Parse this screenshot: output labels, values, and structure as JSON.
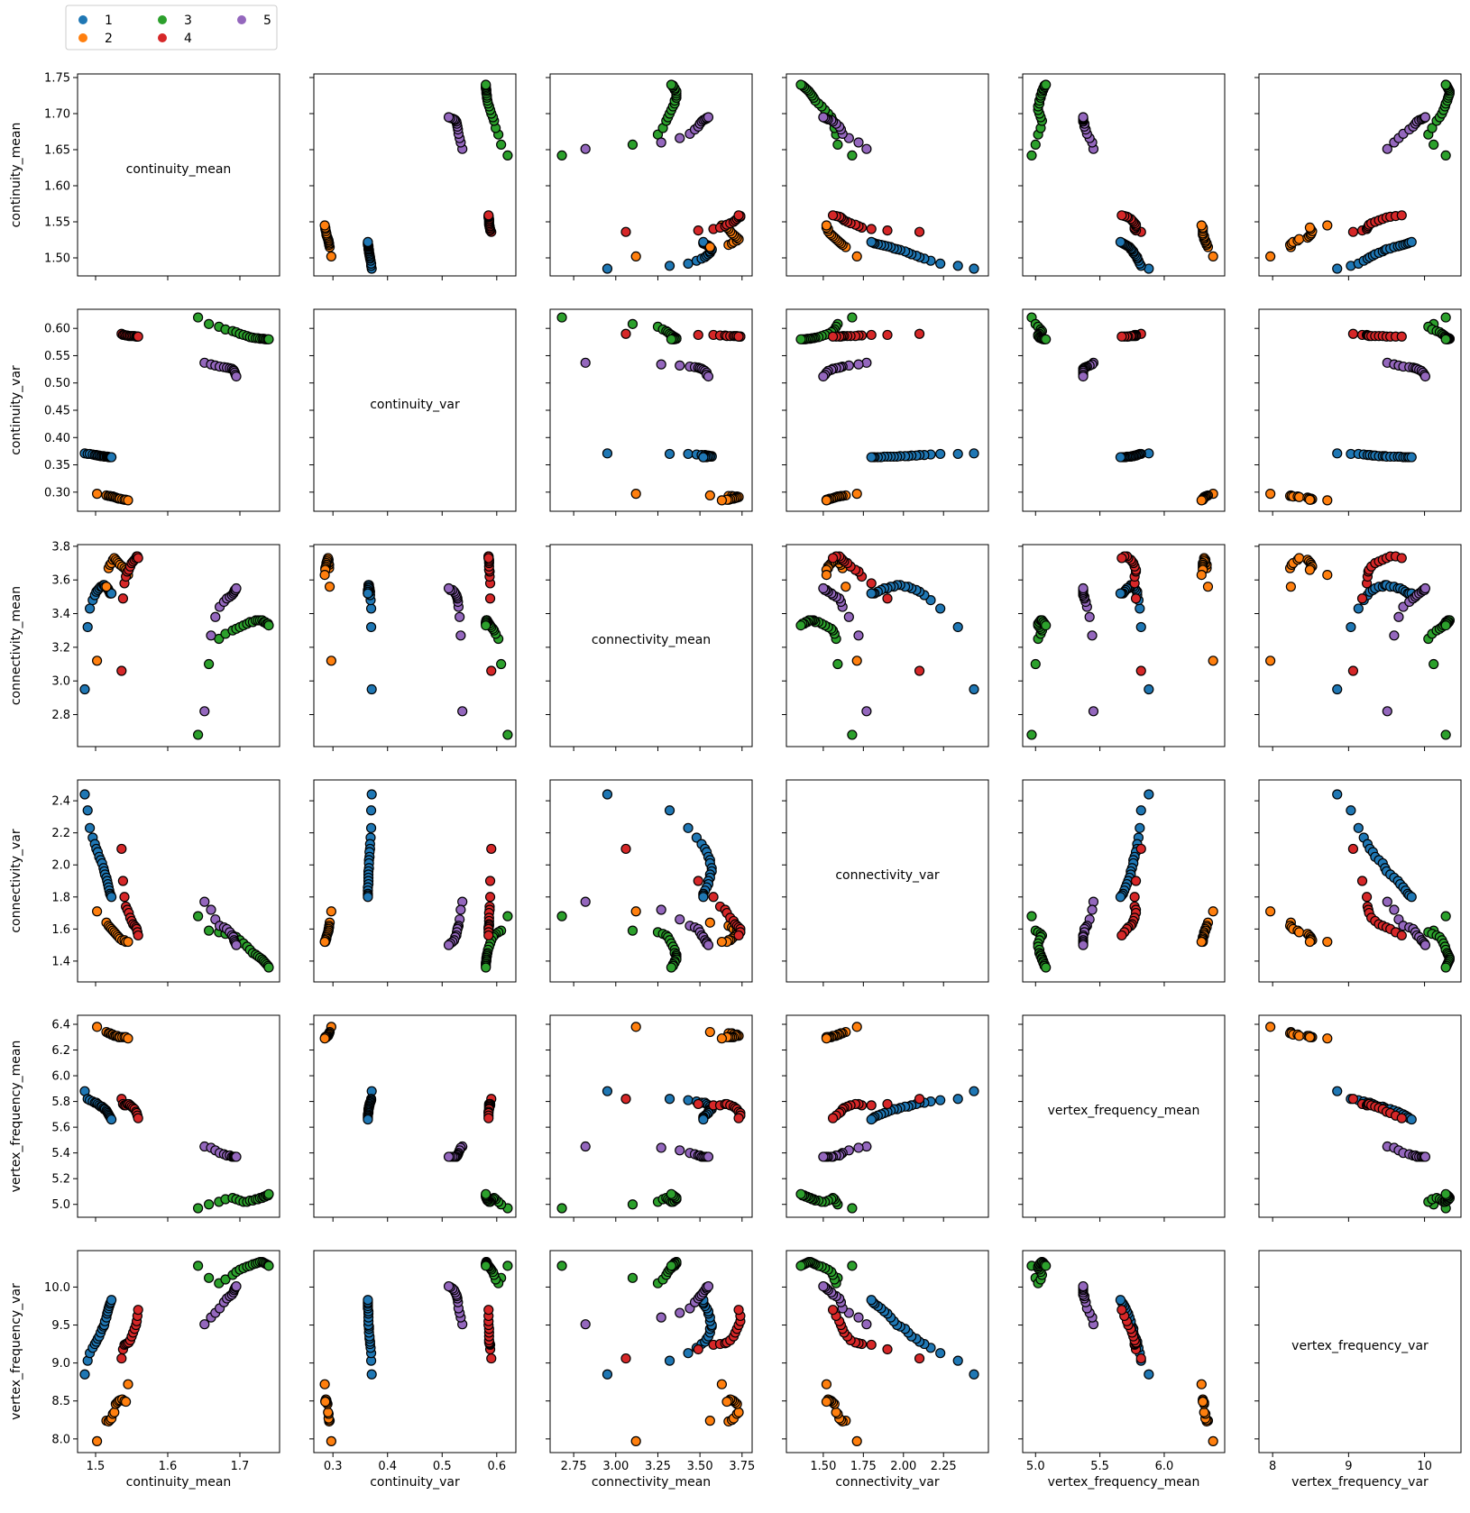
{
  "chart_data": {
    "type": "scatter",
    "layout": "pairplot-6x6",
    "variables": [
      "continuity_mean",
      "continuity_var",
      "connectivity_mean",
      "connectivity_var",
      "vertex_frequency_mean",
      "vertex_frequency_var"
    ],
    "diagonal_labels": [
      "continuity_mean",
      "continuity_var",
      "connectivity_mean",
      "connectivity_var",
      "vertex_frequency_mean",
      "vertex_frequency_var"
    ],
    "xlabels": [
      "continuity_mean",
      "continuity_var",
      "connectivity_mean",
      "connectivity_var",
      "vertex_frequency_mean",
      "vertex_frequency_var"
    ],
    "ylabels": [
      "continuity_mean",
      "continuity_var",
      "connectivity_mean",
      "connectivity_var",
      "vertex_frequency_mean",
      "vertex_frequency_var"
    ],
    "ranges": [
      [
        1.475,
        1.755
      ],
      [
        0.265,
        0.635
      ],
      [
        2.61,
        3.81
      ],
      [
        1.27,
        2.53
      ],
      [
        4.9,
        6.47
      ],
      [
        7.82,
        10.48
      ]
    ],
    "ticks": [
      [
        1.5,
        1.6,
        1.7
      ],
      [
        0.3,
        0.4,
        0.5,
        0.6
      ],
      [
        2.75,
        3.0,
        3.25,
        3.5,
        3.75
      ],
      [
        1.5,
        1.75,
        2.0,
        2.25
      ],
      [
        5.0,
        5.5,
        6.0
      ],
      [
        8,
        9,
        10
      ]
    ],
    "yticks": [
      [
        1.5,
        1.55,
        1.6,
        1.65,
        1.7,
        1.75
      ],
      [
        0.3,
        0.35,
        0.4,
        0.45,
        0.5,
        0.55,
        0.6
      ],
      [
        2.8,
        3.0,
        3.2,
        3.4,
        3.6,
        3.8
      ],
      [
        1.4,
        1.6,
        1.8,
        2.0,
        2.2,
        2.4
      ],
      [
        5.0,
        5.2,
        5.4,
        5.6,
        5.8,
        6.0,
        6.2,
        6.4
      ],
      [
        8.0,
        8.5,
        9.0,
        9.5,
        10.0
      ]
    ],
    "xtick_labels": [
      [
        "1.5",
        "1.6",
        "1.7"
      ],
      [
        "0.3",
        "0.4",
        "0.5",
        "0.6"
      ],
      [
        "2.75",
        "3.00",
        "3.25",
        "3.50",
        "3.75"
      ],
      [
        "1.50",
        "1.75",
        "2.00",
        "2.25"
      ],
      [
        "5.0",
        "5.5",
        "6.0"
      ],
      [
        "8",
        "9",
        "10"
      ]
    ],
    "ytick_labels": [
      [
        "1.50",
        "1.55",
        "1.60",
        "1.65",
        "1.70",
        "1.75"
      ],
      [
        "0.30",
        "0.35",
        "0.40",
        "0.45",
        "0.50",
        "0.55",
        "0.60"
      ],
      [
        "2.8",
        "3.0",
        "3.2",
        "3.4",
        "3.6",
        "3.8"
      ],
      [
        "1.4",
        "1.6",
        "1.8",
        "2.0",
        "2.2",
        "2.4"
      ],
      [
        "5.0",
        "5.2",
        "5.4",
        "5.6",
        "5.8",
        "6.0",
        "6.2",
        "6.4"
      ],
      [
        "8.0",
        "8.5",
        "9.0",
        "9.5",
        "10.0"
      ]
    ],
    "grid": false,
    "legend_position": "top-left",
    "series": [
      {
        "name": "1",
        "color": "#1f77b4",
        "points": [
          [
            1.485,
            0.371,
            2.95,
            2.44,
            5.88,
            8.85
          ],
          [
            1.489,
            0.37,
            3.32,
            2.34,
            5.82,
            9.03
          ],
          [
            1.492,
            0.37,
            3.43,
            2.23,
            5.81,
            9.13
          ],
          [
            1.496,
            0.369,
            3.48,
            2.17,
            5.8,
            9.2
          ],
          [
            1.499,
            0.368,
            3.51,
            2.13,
            5.79,
            9.25
          ],
          [
            1.501,
            0.368,
            3.53,
            2.1,
            5.79,
            9.28
          ],
          [
            1.503,
            0.367,
            3.54,
            2.08,
            5.78,
            9.32
          ],
          [
            1.505,
            0.367,
            3.55,
            2.05,
            5.77,
            9.35
          ],
          [
            1.507,
            0.366,
            3.56,
            2.03,
            5.76,
            9.4
          ],
          [
            1.509,
            0.366,
            3.56,
            2.01,
            5.76,
            9.45
          ],
          [
            1.511,
            0.366,
            3.57,
            1.98,
            5.75,
            9.48
          ],
          [
            1.512,
            0.365,
            3.57,
            1.96,
            5.74,
            9.5
          ],
          [
            1.513,
            0.365,
            3.56,
            1.94,
            5.74,
            9.55
          ],
          [
            1.515,
            0.365,
            3.56,
            1.92,
            5.73,
            9.6
          ],
          [
            1.516,
            0.365,
            3.55,
            1.9,
            5.72,
            9.65
          ],
          [
            1.517,
            0.365,
            3.55,
            1.88,
            5.71,
            9.68
          ],
          [
            1.518,
            0.364,
            3.54,
            1.86,
            5.7,
            9.72
          ],
          [
            1.519,
            0.364,
            3.53,
            1.84,
            5.69,
            9.75
          ],
          [
            1.52,
            0.364,
            3.52,
            1.82,
            5.68,
            9.78
          ],
          [
            1.521,
            0.364,
            3.52,
            1.81,
            5.67,
            9.8
          ],
          [
            1.522,
            0.364,
            3.52,
            1.8,
            5.66,
            9.83
          ]
        ]
      },
      {
        "name": "2",
        "color": "#ff7f0e",
        "points": [
          [
            1.502,
            0.297,
            3.12,
            1.71,
            6.38,
            7.97
          ],
          [
            1.515,
            0.294,
            3.56,
            1.64,
            6.34,
            8.24
          ],
          [
            1.518,
            0.293,
            3.67,
            1.62,
            6.33,
            8.23
          ],
          [
            1.52,
            0.293,
            3.69,
            1.61,
            6.33,
            8.25
          ],
          [
            1.522,
            0.292,
            3.7,
            1.6,
            6.32,
            8.27
          ],
          [
            1.524,
            0.292,
            3.72,
            1.59,
            6.32,
            8.33
          ],
          [
            1.526,
            0.291,
            3.73,
            1.58,
            6.31,
            8.35
          ],
          [
            1.528,
            0.29,
            3.72,
            1.57,
            6.31,
            8.46
          ],
          [
            1.53,
            0.289,
            3.71,
            1.56,
            6.31,
            8.48
          ],
          [
            1.532,
            0.288,
            3.7,
            1.55,
            6.3,
            8.5
          ],
          [
            1.534,
            0.288,
            3.69,
            1.54,
            6.3,
            8.51
          ],
          [
            1.537,
            0.287,
            3.68,
            1.53,
            6.3,
            8.52
          ],
          [
            1.54,
            0.286,
            3.67,
            1.53,
            6.3,
            8.5
          ],
          [
            1.542,
            0.286,
            3.66,
            1.52,
            6.3,
            8.49
          ],
          [
            1.545,
            0.285,
            3.63,
            1.52,
            6.29,
            8.72
          ]
        ]
      },
      {
        "name": "3",
        "color": "#2ca02c",
        "points": [
          [
            1.642,
            0.62,
            2.68,
            1.68,
            4.97,
            10.28
          ],
          [
            1.657,
            0.608,
            3.1,
            1.59,
            5.0,
            10.12
          ],
          [
            1.671,
            0.603,
            3.25,
            1.58,
            5.02,
            10.05
          ],
          [
            1.68,
            0.598,
            3.28,
            1.57,
            5.04,
            10.1
          ],
          [
            1.69,
            0.595,
            3.3,
            1.56,
            5.05,
            10.16
          ],
          [
            1.695,
            0.593,
            3.31,
            1.55,
            5.04,
            10.2
          ],
          [
            1.7,
            0.59,
            3.32,
            1.53,
            5.03,
            10.23
          ],
          [
            1.705,
            0.588,
            3.33,
            1.51,
            5.02,
            10.25
          ],
          [
            1.71,
            0.586,
            3.34,
            1.49,
            5.02,
            10.27
          ],
          [
            1.714,
            0.584,
            3.35,
            1.47,
            5.03,
            10.28
          ],
          [
            1.718,
            0.583,
            3.35,
            1.45,
            5.03,
            10.3
          ],
          [
            1.722,
            0.582,
            3.36,
            1.44,
            5.04,
            10.31
          ],
          [
            1.725,
            0.582,
            3.36,
            1.43,
            5.04,
            10.32
          ],
          [
            1.728,
            0.581,
            3.36,
            1.42,
            5.05,
            10.33
          ],
          [
            1.731,
            0.581,
            3.36,
            1.41,
            5.05,
            10.33
          ],
          [
            1.733,
            0.581,
            3.35,
            1.4,
            5.06,
            10.32
          ],
          [
            1.735,
            0.58,
            3.35,
            1.39,
            5.06,
            10.31
          ],
          [
            1.737,
            0.58,
            3.34,
            1.38,
            5.07,
            10.3
          ],
          [
            1.739,
            0.58,
            3.34,
            1.37,
            5.07,
            10.29
          ],
          [
            1.74,
            0.58,
            3.33,
            1.36,
            5.08,
            10.28
          ]
        ]
      },
      {
        "name": "4",
        "color": "#d62728",
        "points": [
          [
            1.536,
            0.59,
            3.06,
            2.1,
            5.82,
            9.06
          ],
          [
            1.538,
            0.588,
            3.49,
            1.9,
            5.78,
            9.18
          ],
          [
            1.54,
            0.588,
            3.58,
            1.8,
            5.77,
            9.24
          ],
          [
            1.542,
            0.587,
            3.62,
            1.74,
            5.77,
            9.25
          ],
          [
            1.544,
            0.587,
            3.65,
            1.72,
            5.78,
            9.26
          ],
          [
            1.546,
            0.586,
            3.66,
            1.7,
            5.78,
            9.27
          ],
          [
            1.548,
            0.586,
            3.68,
            1.67,
            5.77,
            9.3
          ],
          [
            1.55,
            0.586,
            3.7,
            1.65,
            5.76,
            9.35
          ],
          [
            1.552,
            0.586,
            3.71,
            1.63,
            5.75,
            9.4
          ],
          [
            1.554,
            0.586,
            3.72,
            1.62,
            5.74,
            9.45
          ],
          [
            1.556,
            0.585,
            3.73,
            1.61,
            5.72,
            9.5
          ],
          [
            1.557,
            0.585,
            3.74,
            1.6,
            5.71,
            9.55
          ],
          [
            1.558,
            0.585,
            3.74,
            1.58,
            5.69,
            9.62
          ],
          [
            1.559,
            0.585,
            3.73,
            1.56,
            5.67,
            9.7
          ]
        ]
      },
      {
        "name": "5",
        "color": "#9467bd",
        "points": [
          [
            1.651,
            0.537,
            2.82,
            1.77,
            5.45,
            9.51
          ],
          [
            1.66,
            0.534,
            3.27,
            1.72,
            5.44,
            9.6
          ],
          [
            1.666,
            0.532,
            3.38,
            1.66,
            5.42,
            9.66
          ],
          [
            1.672,
            0.53,
            3.44,
            1.62,
            5.4,
            9.72
          ],
          [
            1.678,
            0.529,
            3.47,
            1.61,
            5.39,
            9.8
          ],
          [
            1.682,
            0.528,
            3.49,
            1.6,
            5.38,
            9.85
          ],
          [
            1.686,
            0.527,
            3.5,
            1.58,
            5.38,
            9.88
          ],
          [
            1.689,
            0.526,
            3.51,
            1.56,
            5.37,
            9.9
          ],
          [
            1.691,
            0.524,
            3.52,
            1.55,
            5.37,
            9.93
          ],
          [
            1.692,
            0.522,
            3.53,
            1.53,
            5.37,
            9.96
          ],
          [
            1.693,
            0.519,
            3.54,
            1.52,
            5.37,
            9.98
          ],
          [
            1.694,
            0.515,
            3.54,
            1.51,
            5.37,
            10.0
          ],
          [
            1.695,
            0.512,
            3.55,
            1.5,
            5.37,
            10.01
          ]
        ]
      }
    ]
  }
}
